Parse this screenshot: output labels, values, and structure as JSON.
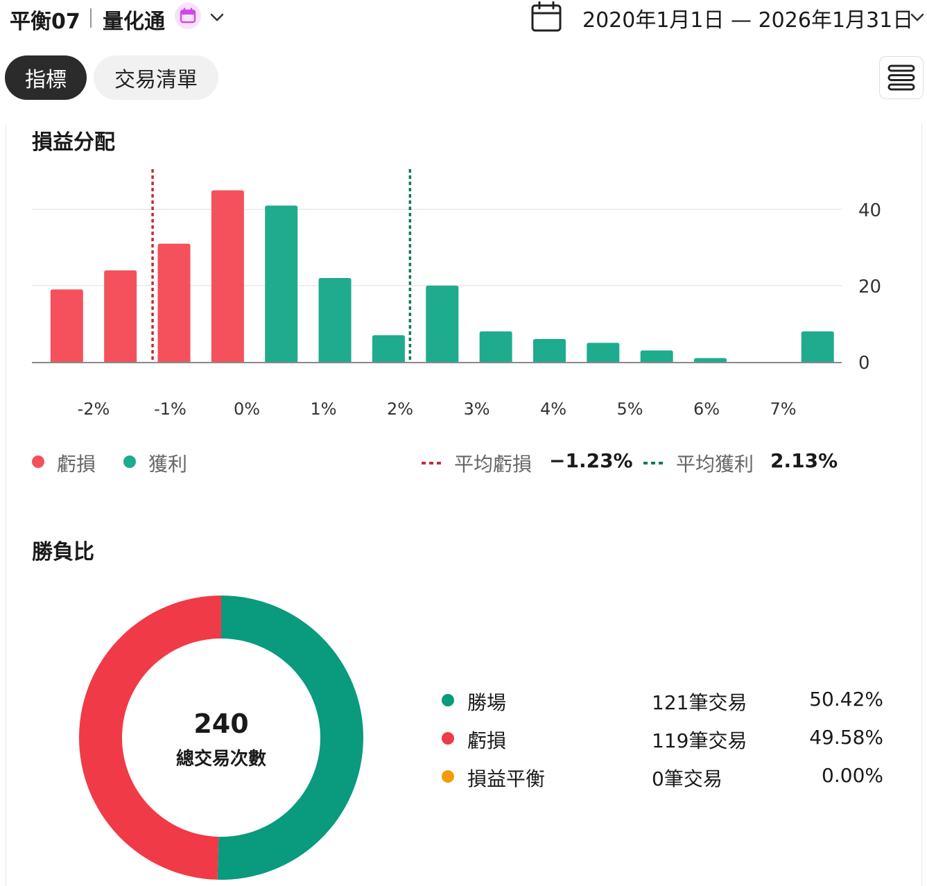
{
  "header": {
    "strategy_name": "平衡07",
    "product_name": "量化通",
    "date_range": "2020年1月1日 — 2026年1月31日"
  },
  "tabs": [
    {
      "label": "指標",
      "active": true
    },
    {
      "label": "交易清單",
      "active": false
    }
  ],
  "icons": {
    "badge": "calendar-icon",
    "product_chevron": "chevron-down-icon",
    "date": "calendar-icon",
    "date_chevron": "chevron-down-icon",
    "menu": "list-menu-icon"
  },
  "colors": {
    "loss": "#f4515c",
    "profit": "#1fab8d",
    "avg_loss_line": "#c0303b",
    "avg_profit_line": "#0f7a5f",
    "donut_win": "#0a9a7e",
    "donut_loss": "#f03a48",
    "breakeven": "#f59b0b"
  },
  "pnl_distribution": {
    "title": "損益分配",
    "legend": {
      "loss_label": "虧損",
      "profit_label": "獲利",
      "avg_loss_label": "平均虧損",
      "avg_loss_value": "−1.23%",
      "avg_profit_label": "平均獲利",
      "avg_profit_value": "2.13%"
    }
  },
  "chart_data": {
    "type": "bar",
    "x_tick_labels": [
      "-2%",
      "-1%",
      "0%",
      "1%",
      "2%",
      "3%",
      "4%",
      "5%",
      "6%",
      "7%"
    ],
    "x_ticks": [
      -2,
      -1,
      0,
      1,
      2,
      3,
      4,
      5,
      6,
      7
    ],
    "bins": [
      {
        "x": -2.35,
        "value": 19,
        "kind": "loss"
      },
      {
        "x": -1.65,
        "value": 24,
        "kind": "loss"
      },
      {
        "x": -0.95,
        "value": 31,
        "kind": "loss"
      },
      {
        "x": -0.25,
        "value": 45,
        "kind": "loss"
      },
      {
        "x": 0.45,
        "value": 41,
        "kind": "profit"
      },
      {
        "x": 1.15,
        "value": 22,
        "kind": "profit"
      },
      {
        "x": 1.85,
        "value": 7,
        "kind": "profit"
      },
      {
        "x": 2.55,
        "value": 20,
        "kind": "profit"
      },
      {
        "x": 3.25,
        "value": 8,
        "kind": "profit"
      },
      {
        "x": 3.95,
        "value": 6,
        "kind": "profit"
      },
      {
        "x": 4.65,
        "value": 5,
        "kind": "profit"
      },
      {
        "x": 5.35,
        "value": 3,
        "kind": "profit"
      },
      {
        "x": 6.05,
        "value": 1,
        "kind": "profit"
      },
      {
        "x": 6.75,
        "value": 0,
        "kind": "profit"
      },
      {
        "x": 7.45,
        "value": 8,
        "kind": "profit"
      }
    ],
    "avg_loss_x": -1.23,
    "avg_profit_x": 2.13,
    "y_ticks": [
      0,
      20,
      40
    ],
    "ylim": [
      0,
      50
    ],
    "grid": true
  },
  "win_loss": {
    "title": "勝負比",
    "total_trades": "240",
    "total_label": "總交易次數",
    "items": [
      {
        "label": "勝場",
        "count_text": "121筆交易",
        "pct_text": "50.42%",
        "value": 121,
        "color": "#0a9a7e"
      },
      {
        "label": "虧損",
        "count_text": "119筆交易",
        "pct_text": "49.58%",
        "value": 119,
        "color": "#f03a48"
      },
      {
        "label": "損益平衡",
        "count_text": "0筆交易",
        "pct_text": "0.00%",
        "value": 0,
        "color": "#f59b0b"
      }
    ]
  }
}
